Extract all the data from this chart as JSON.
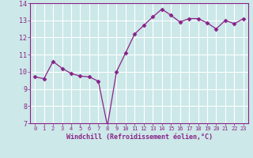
{
  "x": [
    0,
    1,
    2,
    3,
    4,
    5,
    6,
    7,
    8,
    9,
    10,
    11,
    12,
    13,
    14,
    15,
    16,
    17,
    18,
    19,
    20,
    21,
    22,
    23
  ],
  "y": [
    9.7,
    9.6,
    10.6,
    10.2,
    9.9,
    9.75,
    9.7,
    9.45,
    6.85,
    10.0,
    11.1,
    12.2,
    12.7,
    13.2,
    13.65,
    13.3,
    12.9,
    13.1,
    13.1,
    12.85,
    12.5,
    13.0,
    12.8,
    13.1
  ],
  "line_color": "#882288",
  "marker": "D",
  "marker_size": 2.5,
  "bg_color": "#cce8e8",
  "grid_color": "#ffffff",
  "xlabel": "Windchill (Refroidissement éolien,°C)",
  "xlabel_color": "#882288",
  "tick_color": "#882288",
  "spine_color": "#882288",
  "ylim": [
    7,
    14
  ],
  "xlim": [
    -0.5,
    23.5
  ],
  "yticks": [
    7,
    8,
    9,
    10,
    11,
    12,
    13,
    14
  ],
  "xticks": [
    0,
    1,
    2,
    3,
    4,
    5,
    6,
    7,
    8,
    9,
    10,
    11,
    12,
    13,
    14,
    15,
    16,
    17,
    18,
    19,
    20,
    21,
    22,
    23
  ]
}
